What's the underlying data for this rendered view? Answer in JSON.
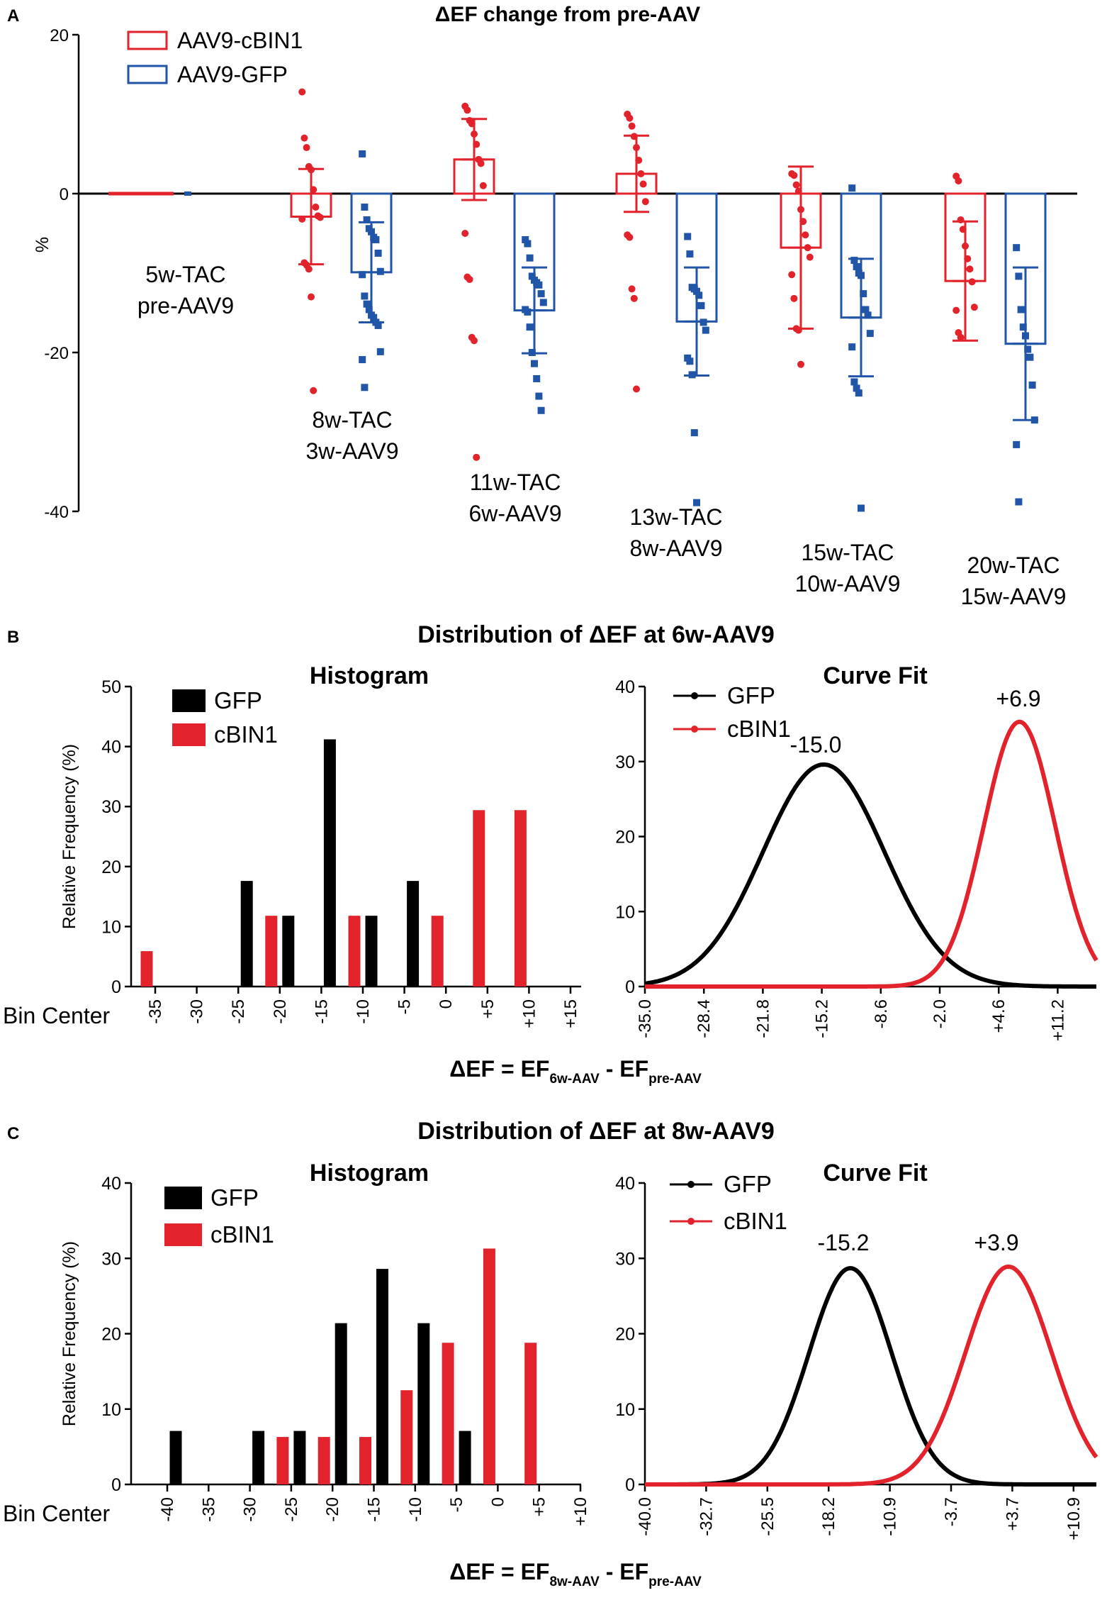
{
  "colors": {
    "red": "#e2232b",
    "blue": "#2155a8",
    "black": "#000000"
  },
  "panels": {
    "a": "A",
    "b": "B",
    "c": "C"
  },
  "chart_data": [
    {
      "id": "A",
      "type": "bar",
      "title": "ΔEF change from pre-AAV",
      "ylabel": "%",
      "ylim": [
        -40,
        20
      ],
      "yticks": [
        20,
        0,
        -20,
        -40
      ],
      "legend_position": "top-left",
      "categories": [
        "5w-TAC\npre-AAV9",
        "8w-TAC\n3w-AAV9",
        "11w-TAC\n6w-AAV9",
        "13w-TAC\n8w-AAV9",
        "15w-TAC\n10w-AAV9",
        "20w-TAC\n15w-AAV9"
      ],
      "series": [
        {
          "name": "AAV9-cBIN1",
          "color": "#e2232b",
          "values": [
            0,
            -2.9,
            4.3,
            2.5,
            -6.8,
            -11.0
          ],
          "error": [
            0,
            6.0,
            5.1,
            4.8,
            10.2,
            7.5
          ],
          "points": [
            [
              0,
              0,
              0,
              0,
              0,
              0
            ],
            [
              12.8,
              7,
              5.8,
              3.4,
              3,
              0.5,
              -1.7,
              -2.8,
              -3,
              -3.2,
              -8.7,
              -9,
              -9.5,
              -13,
              -24.8
            ],
            [
              11,
              10.5,
              9.2,
              8.8,
              7.5,
              6.2,
              4.3,
              3.8,
              1,
              -5,
              -10.5,
              -10.8,
              -18.1,
              -18.5,
              -33.2
            ],
            [
              10,
              9.5,
              8.5,
              7.2,
              5.8,
              4.2,
              2.5,
              1.2,
              -1,
              -5.2,
              -5.5,
              -12,
              -13.2,
              -24.6
            ],
            [
              2.5,
              2.3,
              1.1,
              0.3,
              -2,
              -3.5,
              -5.2,
              -6.8,
              -8,
              -10.2,
              -13.2,
              -17,
              -17.2,
              -21.5
            ],
            [
              2.2,
              1.6,
              -3.3,
              -4.5,
              -6.6,
              -8.2,
              -9.5,
              -11.1,
              -14.3,
              -14.7,
              -17.5,
              -18.1
            ]
          ]
        },
        {
          "name": "AAV9-GFP",
          "color": "#2155a8",
          "values": [
            0,
            -9.9,
            -14.7,
            -16.1,
            -15.6,
            -18.9
          ],
          "error": [
            0,
            6.3,
            5.4,
            6.8,
            7.4,
            9.6
          ],
          "points": [
            [
              0
            ],
            [
              5,
              -1.7,
              -3.3,
              -4.4,
              -4.8,
              -5.5,
              -5.8,
              -7.5,
              -9.8,
              -10.2,
              -12.9,
              -13.9,
              -14.6,
              -15.3,
              -15.6,
              -16.2,
              -16.6,
              -19.9,
              -20.9,
              -24.4
            ],
            [
              -5.8,
              -6.3,
              -8.1,
              -10.4,
              -10.9,
              -11.2,
              -11.5,
              -12.6,
              -13.7,
              -14.6,
              -14.9,
              -16.8,
              -20,
              -21.4,
              -23.3,
              -25.5,
              -27.3
            ],
            [
              -5.4,
              -7.6,
              -11.8,
              -12,
              -12.3,
              -12.8,
              -14.1,
              -16.2,
              -17.2,
              -20.7,
              -21.1,
              -22.8,
              -30.1,
              -38.9
            ],
            [
              0.7,
              -8.4,
              -9.2,
              -10,
              -10.3,
              -12.6,
              -14.6,
              -15.3,
              -17.6,
              -19.3,
              -23.7,
              -24.5,
              -25.1,
              -39.6
            ],
            [
              -6.8,
              -10.4,
              -14.6,
              -16.8,
              -17.9,
              -19.6,
              -20.6,
              -24.1,
              -28.5,
              -31.6,
              -38.8
            ]
          ]
        }
      ]
    },
    {
      "id": "B",
      "title": "Distribution of ΔEF at 6w-AAV9",
      "xlabel_main": "ΔEF = EF",
      "xlabel_sub1": "6w-AAV",
      "xlabel_mid": " - EF",
      "xlabel_sub2": "pre-AAV",
      "histogram": {
        "type": "bar",
        "title": "Histogram",
        "ylabel": "Relative Frequency (%)",
        "xlabel": "Bin Center",
        "ylim": [
          0,
          50
        ],
        "yticks": [
          0,
          10,
          20,
          30,
          40,
          50
        ],
        "categories": [
          "-35",
          "-30",
          "-25",
          "-20",
          "-15",
          "-10",
          "-5",
          "0",
          "+5",
          "+10",
          "+15"
        ],
        "series": [
          {
            "name": "GFP",
            "color": "#000000",
            "values": [
              0,
              0,
              17.6,
              11.8,
              41.2,
              11.8,
              17.6,
              0,
              0,
              0,
              0
            ]
          },
          {
            "name": "cBIN1",
            "color": "#e2232b",
            "values": [
              5.9,
              0,
              0,
              11.8,
              0,
              11.8,
              0,
              11.8,
              29.4,
              29.4,
              0
            ]
          }
        ]
      },
      "curve_fit": {
        "type": "line",
        "title": "Curve Fit",
        "xlim": [
          -35,
          15.5
        ],
        "xticks": [
          "-35.0",
          "-28.4",
          "-21.8",
          "-15.2",
          "-8.6",
          "-2.0",
          "+4.6",
          "+11.2"
        ],
        "ylim": [
          0,
          40
        ],
        "yticks": [
          0,
          10,
          20,
          30,
          40
        ],
        "series": [
          {
            "name": "GFP",
            "color": "#000000",
            "peak_label": "-15.0",
            "amplitude": 29.6,
            "mean": -15.0,
            "sd": 6.8
          },
          {
            "name": "cBIN1",
            "color": "#e2232b",
            "peak_label": "+6.9",
            "amplitude": 35.3,
            "mean": 6.9,
            "sd": 4.0
          }
        ]
      }
    },
    {
      "id": "C",
      "title": "Distribution of ΔEF at 8w-AAV9",
      "xlabel_main": "ΔEF = EF",
      "xlabel_sub1": "8w-AAV",
      "xlabel_mid": " - EF",
      "xlabel_sub2": "pre-AAV",
      "histogram": {
        "type": "bar",
        "title": "Histogram",
        "ylabel": "Relative Frequency (%)",
        "xlabel": "Bin Center",
        "ylim": [
          0,
          40
        ],
        "yticks": [
          0,
          10,
          20,
          30,
          40
        ],
        "categories": [
          "-40",
          "-35",
          "-30",
          "-25",
          "-20",
          "-15",
          "-10",
          "-5",
          "0",
          "+5",
          "+10"
        ],
        "series": [
          {
            "name": "GFP",
            "color": "#000000",
            "values": [
              7.1,
              0,
              7.1,
              7.1,
              21.4,
              28.6,
              21.4,
              7.1,
              0,
              0,
              0
            ]
          },
          {
            "name": "cBIN1",
            "color": "#e2232b",
            "values": [
              0,
              0,
              0,
              6.3,
              6.3,
              6.3,
              12.5,
              18.8,
              31.3,
              18.8,
              0
            ]
          }
        ]
      },
      "curve_fit": {
        "type": "line",
        "title": "Curve Fit",
        "xlim": [
          -40,
          14.5
        ],
        "xticks": [
          "-40.0",
          "-32.7",
          "-25.5",
          "-18.2",
          "-10.9",
          "-3.7",
          "+3.7",
          "+10.9"
        ],
        "ylim": [
          0,
          40
        ],
        "yticks": [
          0,
          10,
          20,
          30,
          40
        ],
        "series": [
          {
            "name": "GFP",
            "color": "#000000",
            "peak_label": "-15.2",
            "amplitude": 28.7,
            "mean": -15.2,
            "sd": 5.0
          },
          {
            "name": "cBIN1",
            "color": "#e2232b",
            "peak_label": "+3.9",
            "amplitude": 28.9,
            "mean": 3.9,
            "sd": 5.2
          }
        ]
      }
    }
  ]
}
